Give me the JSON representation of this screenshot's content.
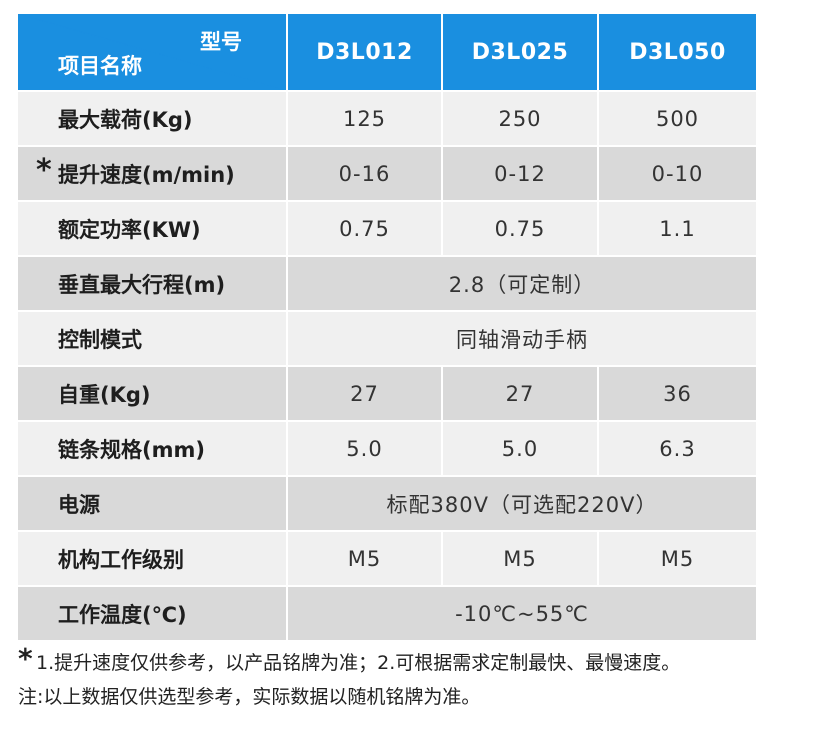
{
  "header": {
    "corner_top": "型号",
    "corner_bottom": "项目名称",
    "models": [
      "D3L012",
      "D3L025",
      "D3L050"
    ]
  },
  "rows": [
    {
      "label": "最大载荷(Kg)",
      "values": [
        "125",
        "250",
        "500"
      ]
    },
    {
      "label": "提升速度(m/min)",
      "star": "*",
      "values": [
        "0-16",
        "0-12",
        "0-10"
      ]
    },
    {
      "label": "额定功率(KW)",
      "values": [
        "0.75",
        "0.75",
        "1.1"
      ]
    },
    {
      "label": "垂直最大行程(m)",
      "span": "2.8（可定制）"
    },
    {
      "label": "控制模式",
      "span": "同轴滑动手柄"
    },
    {
      "label": "自重(Kg)",
      "values": [
        "27",
        "27",
        "36"
      ]
    },
    {
      "label": "链条规格(mm)",
      "values": [
        "5.0",
        "5.0",
        "6.3"
      ]
    },
    {
      "label": "电源",
      "span": "标配380V（可选配220V）"
    },
    {
      "label": "机构工作级别",
      "values": [
        "M5",
        "M5",
        "M5"
      ]
    },
    {
      "label": "工作温度(℃)",
      "span": "-10℃~55℃"
    }
  ],
  "notes": {
    "star": "*",
    "line1": "1.提升速度仅供参考，以产品铭牌为准；2.可根据需求定制最快、最慢速度。",
    "line2": "注:以上数据仅供选型参考，实际数据以随机铭牌为准。"
  },
  "colors": {
    "header_bg": "#1a8fe0",
    "row_light": "#f0f0f0",
    "row_dark": "#d9d9d9"
  }
}
